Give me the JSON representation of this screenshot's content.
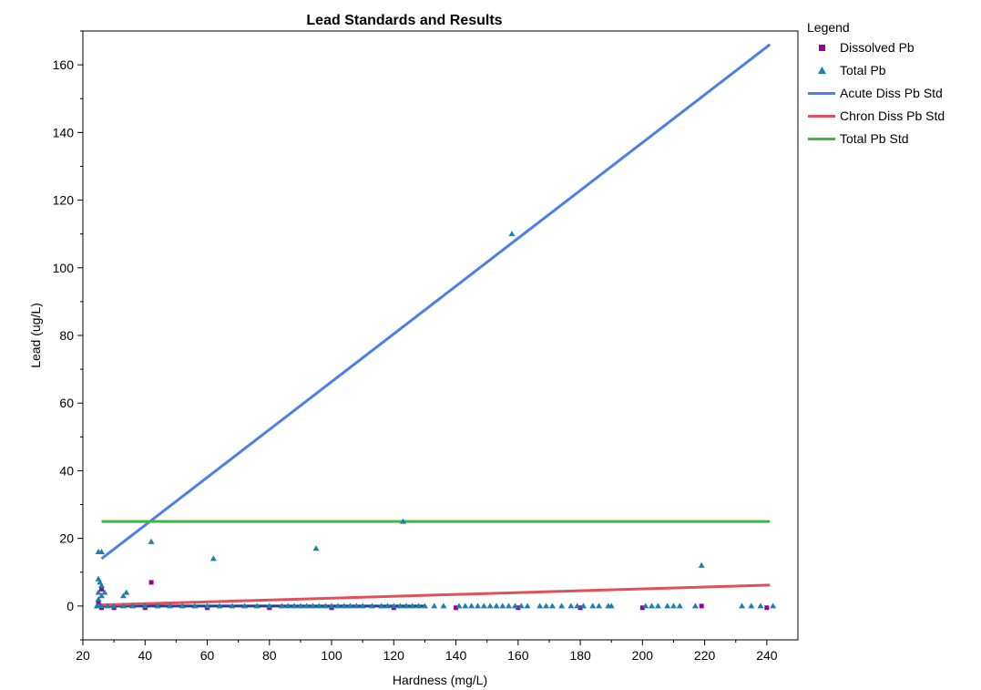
{
  "chart_data": {
    "type": "scatter",
    "title": "Lead Standards and Results",
    "xlabel": "Hardness (mg/L)",
    "ylabel": "Lead (ug/L)",
    "xlim": [
      20,
      250
    ],
    "ylim": [
      -10,
      170
    ],
    "x_ticks": [
      20,
      40,
      60,
      80,
      100,
      120,
      140,
      160,
      180,
      200,
      220,
      240
    ],
    "y_ticks": [
      0,
      20,
      40,
      60,
      80,
      100,
      120,
      140,
      160
    ],
    "grid": false,
    "legend_title": "Legend",
    "legend_position": "right",
    "series": [
      {
        "name": "Dissolved Pb",
        "kind": "points",
        "marker": "square",
        "color": "#990099",
        "points": [
          [
            25,
            1
          ],
          [
            26,
            5
          ],
          [
            42,
            7
          ],
          [
            219,
            0
          ],
          [
            26,
            -0.5
          ],
          [
            30,
            -0.5
          ],
          [
            40,
            -0.5
          ],
          [
            60,
            -0.5
          ],
          [
            80,
            -0.5
          ],
          [
            100,
            -0.5
          ],
          [
            120,
            -0.5
          ],
          [
            140,
            -0.5
          ],
          [
            160,
            -0.5
          ],
          [
            180,
            -0.5
          ],
          [
            200,
            -0.5
          ],
          [
            240,
            -0.5
          ]
        ]
      },
      {
        "name": "Total Pb",
        "kind": "points",
        "marker": "triangle",
        "color": "#1f7fa8",
        "points": [
          [
            25,
            16
          ],
          [
            26,
            16
          ],
          [
            25,
            8
          ],
          [
            25.5,
            7
          ],
          [
            26,
            6
          ],
          [
            25,
            4
          ],
          [
            26,
            3
          ],
          [
            27,
            4
          ],
          [
            25,
            2
          ],
          [
            33,
            3
          ],
          [
            34,
            4
          ],
          [
            42,
            19
          ],
          [
            62,
            14
          ],
          [
            95,
            17
          ],
          [
            123,
            25
          ],
          [
            158,
            110
          ],
          [
            219,
            12
          ],
          [
            24.5,
            0
          ],
          [
            25,
            0
          ],
          [
            26,
            0
          ],
          [
            28,
            0
          ],
          [
            30,
            0
          ],
          [
            33,
            0
          ],
          [
            36,
            0
          ],
          [
            40,
            0
          ],
          [
            44,
            0
          ],
          [
            48,
            0
          ],
          [
            52,
            0
          ],
          [
            56,
            0
          ],
          [
            60,
            0
          ],
          [
            64,
            0
          ],
          [
            68,
            0
          ],
          [
            72,
            0
          ],
          [
            76,
            0
          ],
          [
            80,
            0
          ],
          [
            84,
            0
          ],
          [
            86,
            0
          ],
          [
            88,
            0
          ],
          [
            90,
            0
          ],
          [
            92,
            0
          ],
          [
            94,
            0
          ],
          [
            96,
            0
          ],
          [
            98,
            0
          ],
          [
            100,
            0
          ],
          [
            102,
            0
          ],
          [
            104,
            0
          ],
          [
            106,
            0
          ],
          [
            108,
            0
          ],
          [
            110,
            0
          ],
          [
            113,
            0
          ],
          [
            116,
            0
          ],
          [
            118,
            0
          ],
          [
            120,
            0
          ],
          [
            122,
            0
          ],
          [
            124,
            0
          ],
          [
            126,
            0
          ],
          [
            128,
            0
          ],
          [
            130,
            0
          ],
          [
            133,
            0
          ],
          [
            136,
            0
          ],
          [
            141,
            0
          ],
          [
            143,
            0
          ],
          [
            145,
            0
          ],
          [
            147,
            0
          ],
          [
            149,
            0
          ],
          [
            151,
            0
          ],
          [
            153,
            0
          ],
          [
            155,
            0
          ],
          [
            157,
            0
          ],
          [
            159,
            0
          ],
          [
            161,
            0
          ],
          [
            163,
            0
          ],
          [
            167,
            0
          ],
          [
            169,
            0
          ],
          [
            171,
            0
          ],
          [
            174,
            0
          ],
          [
            177,
            0
          ],
          [
            179,
            0
          ],
          [
            181,
            0
          ],
          [
            184,
            0
          ],
          [
            186,
            0
          ],
          [
            189,
            0
          ],
          [
            190,
            0
          ],
          [
            201,
            0
          ],
          [
            203,
            0
          ],
          [
            205,
            0
          ],
          [
            208,
            0
          ],
          [
            210,
            0
          ],
          [
            212,
            0
          ],
          [
            217,
            0
          ],
          [
            232,
            0
          ],
          [
            235,
            0
          ],
          [
            238,
            0
          ],
          [
            242,
            0
          ]
        ]
      },
      {
        "name": "Acute Diss Pb Std",
        "kind": "line",
        "color": "#4d7ee8",
        "points": [
          [
            26,
            14
          ],
          [
            241,
            166
          ]
        ]
      },
      {
        "name": "Chron Diss Pb Std",
        "kind": "line",
        "color": "#e0505a",
        "points": [
          [
            26,
            0.3
          ],
          [
            241,
            6.2
          ]
        ]
      },
      {
        "name": "Total Pb Std",
        "kind": "line",
        "color": "#3cb83c",
        "points": [
          [
            26,
            25
          ],
          [
            241,
            25
          ]
        ]
      }
    ]
  }
}
